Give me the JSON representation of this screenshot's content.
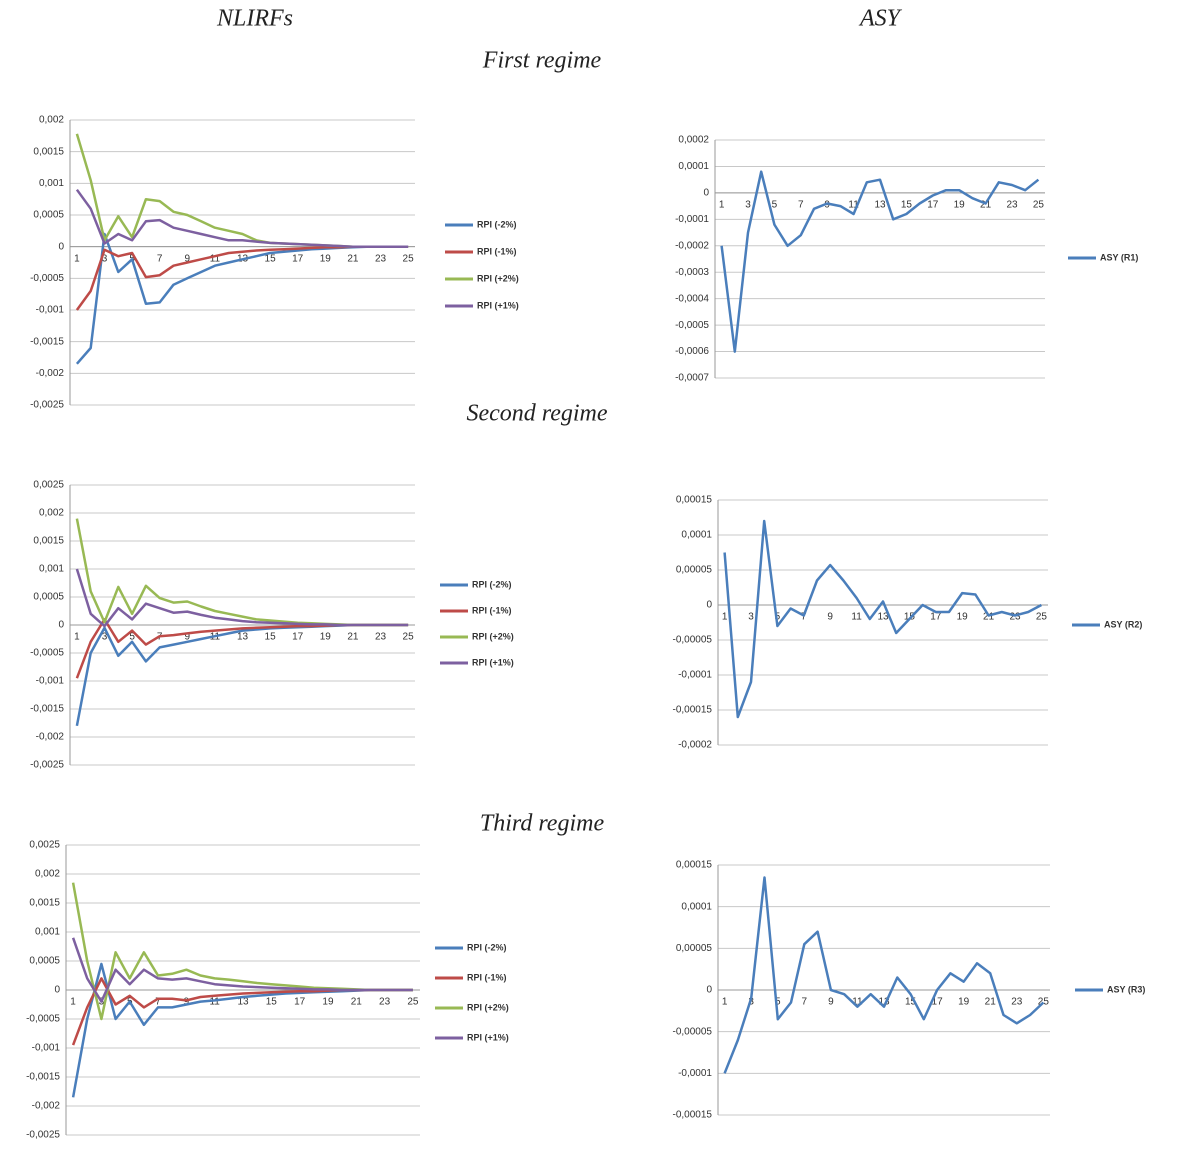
{
  "column_titles": [
    "NLIRFs",
    "ASY"
  ],
  "regime_titles": [
    "First regime",
    "Second regime",
    "Third regime"
  ],
  "chart_data": [
    {
      "type": "line",
      "categories": [
        "1",
        null,
        "3",
        null,
        "5",
        null,
        "7",
        null,
        "9",
        null,
        "11",
        null,
        "13",
        null,
        "15",
        null,
        "17",
        null,
        "19",
        null,
        "21",
        null,
        "23",
        null,
        "25"
      ],
      "ylim": [
        -0.0025,
        0.002
      ],
      "yticks": [
        {
          "value": -0.0025,
          "label": "-0,0025"
        },
        {
          "value": -0.002,
          "label": "-0,002"
        },
        {
          "value": -0.0015,
          "label": "-0,0015"
        },
        {
          "value": -0.001,
          "label": "-0,001"
        },
        {
          "value": -0.0005,
          "label": "-0,0005"
        },
        0,
        {
          "value": 0.0005,
          "label": "0,0005"
        },
        {
          "value": 0.001,
          "label": "0,001"
        },
        {
          "value": 0.0015,
          "label": "0,0015"
        },
        {
          "value": 0.002,
          "label": "0,002"
        }
      ],
      "grid": true,
      "series": [
        {
          "name": "RPI (-2%)",
          "color": "#4a7ebb",
          "values": [
            -0.00185,
            -0.0016,
            0.0002,
            -0.0004,
            -0.0002,
            -0.0009,
            -0.00088,
            -0.0006,
            -0.0005,
            -0.0004,
            -0.0003,
            -0.00025,
            -0.0002,
            -0.00015,
            -0.0001,
            -8e-05,
            -6e-05,
            -4e-05,
            -3e-05,
            -2e-05,
            -1e-05,
            0,
            0,
            0,
            0
          ]
        },
        {
          "name": "RPI (-1%)",
          "color": "#be4b48",
          "values": [
            -0.001,
            -0.0007,
            -5e-05,
            -0.00015,
            -0.0001,
            -0.00048,
            -0.00045,
            -0.0003,
            -0.00025,
            -0.0002,
            -0.00015,
            -0.0001,
            -8e-05,
            -6e-05,
            -5e-05,
            -4e-05,
            -3e-05,
            -2e-05,
            -1e-05,
            -1e-05,
            0,
            0,
            0,
            0,
            0
          ]
        },
        {
          "name": "RPI (+2%)",
          "color": "#98b954",
          "values": [
            0.00178,
            0.00105,
            0.0001,
            0.00048,
            0.00015,
            0.00075,
            0.00072,
            0.00055,
            0.0005,
            0.0004,
            0.0003,
            0.00025,
            0.0002,
            0.0001,
            6e-05,
            5e-05,
            4e-05,
            3e-05,
            2e-05,
            1e-05,
            0,
            0,
            0,
            0,
            0
          ]
        },
        {
          "name": "RPI (+1%)",
          "color": "#7d60a0",
          "values": [
            0.0009,
            0.0006,
            5e-05,
            0.0002,
            0.0001,
            0.0004,
            0.00042,
            0.0003,
            0.00025,
            0.0002,
            0.00015,
            0.0001,
            0.0001,
            8e-05,
            6e-05,
            5e-05,
            4e-05,
            3e-05,
            2e-05,
            1e-05,
            0,
            0,
            0,
            0,
            0
          ]
        }
      ]
    },
    {
      "type": "line",
      "categories": [
        "1",
        null,
        "3",
        null,
        "5",
        null,
        "7",
        null,
        "9",
        null,
        "11",
        null,
        "13",
        null,
        "15",
        null,
        "17",
        null,
        "19",
        null,
        "21",
        null,
        "23",
        null,
        "25"
      ],
      "ylim": [
        -0.0007,
        0.0002
      ],
      "yticks": [
        {
          "value": -0.0007,
          "label": "-0,0007"
        },
        {
          "value": -0.0006,
          "label": "-0,0006"
        },
        {
          "value": -0.0005,
          "label": "-0,0005"
        },
        {
          "value": -0.0004,
          "label": "-0,0004"
        },
        {
          "value": -0.0003,
          "label": "-0,0003"
        },
        {
          "value": -0.0002,
          "label": "-0,0002"
        },
        {
          "value": -0.0001,
          "label": "-0,0001"
        },
        0,
        {
          "value": 0.0001,
          "label": "0,0001"
        },
        {
          "value": 0.0002,
          "label": "0,0002"
        }
      ],
      "grid": true,
      "series": [
        {
          "name": "ASY (R1)",
          "color": "#4a7ebb",
          "values": [
            -0.0002,
            -0.0006,
            -0.00015,
            8e-05,
            -0.00012,
            -0.0002,
            -0.00016,
            -6e-05,
            -4e-05,
            -5e-05,
            -8e-05,
            4e-05,
            5e-05,
            -0.0001,
            -8e-05,
            -4e-05,
            -1e-05,
            1e-05,
            1e-05,
            -2e-05,
            -4e-05,
            4e-05,
            3e-05,
            1e-05,
            5e-05
          ]
        }
      ]
    },
    {
      "type": "line",
      "categories": [
        "1",
        null,
        "3",
        null,
        "5",
        null,
        "7",
        null,
        "9",
        null,
        "11",
        null,
        "13",
        null,
        "15",
        null,
        "17",
        null,
        "19",
        null,
        "21",
        null,
        "23",
        null,
        "25"
      ],
      "ylim": [
        -0.0025,
        0.0025
      ],
      "yticks": [
        {
          "value": -0.0025,
          "label": "-0,0025"
        },
        {
          "value": -0.002,
          "label": "-0,002"
        },
        {
          "value": -0.0015,
          "label": "-0,0015"
        },
        {
          "value": -0.001,
          "label": "-0,001"
        },
        {
          "value": -0.0005,
          "label": "-0,0005"
        },
        0,
        {
          "value": 0.0005,
          "label": "0,0005"
        },
        {
          "value": 0.001,
          "label": "0,001"
        },
        {
          "value": 0.0015,
          "label": "0,0015"
        },
        {
          "value": 0.002,
          "label": "0,002"
        },
        {
          "value": 0.0025,
          "label": "0,0025"
        }
      ],
      "grid": true,
      "series": [
        {
          "name": "RPI (-2%)",
          "color": "#4a7ebb",
          "values": [
            -0.0018,
            -0.0005,
            -5e-05,
            -0.00055,
            -0.0003,
            -0.00065,
            -0.0004,
            -0.00035,
            -0.0003,
            -0.00025,
            -0.0002,
            -0.00015,
            -0.0001,
            -8e-05,
            -6e-05,
            -5e-05,
            -4e-05,
            -3e-05,
            -2e-05,
            -1e-05,
            0,
            0,
            0,
            0,
            0
          ]
        },
        {
          "name": "RPI (-1%)",
          "color": "#be4b48",
          "values": [
            -0.00095,
            -0.0003,
            0.0001,
            -0.0003,
            -0.0001,
            -0.00035,
            -0.0002,
            -0.00018,
            -0.00015,
            -0.00012,
            -0.0001,
            -8e-05,
            -6e-05,
            -5e-05,
            -4e-05,
            -3e-05,
            -2e-05,
            -2e-05,
            -1e-05,
            0,
            0,
            0,
            0,
            0,
            0
          ]
        },
        {
          "name": "RPI (+2%)",
          "color": "#98b954",
          "values": [
            0.0019,
            0.0006,
            5e-05,
            0.00068,
            0.0002,
            0.0007,
            0.00048,
            0.0004,
            0.00042,
            0.00033,
            0.00025,
            0.0002,
            0.00015,
            0.0001,
            8e-05,
            6e-05,
            4e-05,
            3e-05,
            2e-05,
            1e-05,
            0,
            0,
            0,
            0,
            0
          ]
        },
        {
          "name": "RPI (+1%)",
          "color": "#7d60a0",
          "values": [
            0.001,
            0.0002,
            -2e-05,
            0.0003,
            0.0001,
            0.00038,
            0.0003,
            0.00022,
            0.00024,
            0.00018,
            0.00013,
            0.0001,
            7e-05,
            5e-05,
            4e-05,
            3e-05,
            2e-05,
            1e-05,
            1e-05,
            0,
            0,
            0,
            0,
            0,
            0
          ]
        }
      ]
    },
    {
      "type": "line",
      "categories": [
        "1",
        null,
        "3",
        null,
        "5",
        null,
        "7",
        null,
        "9",
        null,
        "11",
        null,
        "13",
        null,
        "15",
        null,
        "17",
        null,
        "19",
        null,
        "21",
        null,
        "23",
        null,
        "25"
      ],
      "ylim": [
        -0.0002,
        0.00015
      ],
      "yticks": [
        {
          "value": -0.0002,
          "label": "-0,0002"
        },
        {
          "value": -0.00015,
          "label": "-0,00015"
        },
        {
          "value": -0.0001,
          "label": "-0,0001"
        },
        {
          "value": -5e-05,
          "label": "-0,00005"
        },
        0,
        {
          "value": 5e-05,
          "label": "0,00005"
        },
        {
          "value": 0.0001,
          "label": "0,0001"
        },
        {
          "value": 0.00015,
          "label": "0,00015"
        }
      ],
      "grid": true,
      "series": [
        {
          "name": "ASY (R2)",
          "color": "#4a7ebb",
          "values": [
            7.5e-05,
            -0.00016,
            -0.00011,
            0.00012,
            -3e-05,
            -5e-06,
            -1.5e-05,
            3.5e-05,
            5.7e-05,
            3.5e-05,
            1e-05,
            -2e-05,
            5e-06,
            -4e-05,
            -2e-05,
            0,
            -1e-05,
            -1e-05,
            1.7e-05,
            1.5e-05,
            -1.5e-05,
            -1e-05,
            -1.5e-05,
            -1e-05,
            0
          ]
        }
      ]
    },
    {
      "type": "line",
      "categories": [
        "1",
        null,
        "3",
        null,
        "5",
        null,
        "7",
        null,
        "9",
        null,
        "11",
        null,
        "13",
        null,
        "15",
        null,
        "17",
        null,
        "19",
        null,
        "21",
        null,
        "23",
        null,
        "25"
      ],
      "ylim": [
        -0.0025,
        0.0025
      ],
      "yticks": [
        {
          "value": -0.0025,
          "label": "-0,0025"
        },
        {
          "value": -0.002,
          "label": "-0,002"
        },
        {
          "value": -0.0015,
          "label": "-0,0015"
        },
        {
          "value": -0.001,
          "label": "-0,001"
        },
        {
          "value": -0.0005,
          "label": "-0,0005"
        },
        0,
        {
          "value": 0.0005,
          "label": "0,0005"
        },
        {
          "value": 0.001,
          "label": "0,001"
        },
        {
          "value": 0.0015,
          "label": "0,0015"
        },
        {
          "value": 0.002,
          "label": "0,002"
        },
        {
          "value": 0.0025,
          "label": "0,0025"
        }
      ],
      "grid": true,
      "series": [
        {
          "name": "RPI (-2%)",
          "color": "#4a7ebb",
          "values": [
            -0.00185,
            -0.0005,
            0.00045,
            -0.0005,
            -0.0002,
            -0.0006,
            -0.0003,
            -0.0003,
            -0.00025,
            -0.0002,
            -0.00018,
            -0.00015,
            -0.00012,
            -0.0001,
            -8e-05,
            -6e-05,
            -5e-05,
            -4e-05,
            -3e-05,
            -2e-05,
            -1e-05,
            0,
            0,
            0,
            0
          ]
        },
        {
          "name": "RPI (-1%)",
          "color": "#be4b48",
          "values": [
            -0.00095,
            -0.0003,
            0.0002,
            -0.00025,
            -0.0001,
            -0.0003,
            -0.00015,
            -0.00015,
            -0.00018,
            -0.00012,
            -0.0001,
            -8e-05,
            -6e-05,
            -5e-05,
            -4e-05,
            -3e-05,
            -2e-05,
            -2e-05,
            -1e-05,
            0,
            0,
            0,
            0,
            0,
            0
          ]
        },
        {
          "name": "RPI (+2%)",
          "color": "#98b954",
          "values": [
            0.00185,
            0.0005,
            -0.0005,
            0.00065,
            0.0002,
            0.00065,
            0.00025,
            0.00028,
            0.00035,
            0.00025,
            0.0002,
            0.00018,
            0.00015,
            0.00012,
            0.0001,
            8e-05,
            6e-05,
            4e-05,
            3e-05,
            2e-05,
            1e-05,
            0,
            0,
            0,
            0
          ]
        },
        {
          "name": "RPI (+1%)",
          "color": "#7d60a0",
          "values": [
            0.0009,
            0.0002,
            -0.0002,
            0.00035,
            0.0001,
            0.00035,
            0.0002,
            0.00018,
            0.0002,
            0.00015,
            0.0001,
            8e-05,
            6e-05,
            5e-05,
            4e-05,
            3e-05,
            2e-05,
            1e-05,
            1e-05,
            0,
            0,
            0,
            0,
            0,
            0
          ]
        }
      ]
    },
    {
      "type": "line",
      "categories": [
        "1",
        null,
        "3",
        null,
        "5",
        null,
        "7",
        null,
        "9",
        null,
        "11",
        null,
        "13",
        null,
        "15",
        null,
        "17",
        null,
        "19",
        null,
        "21",
        null,
        "23",
        null,
        "25"
      ],
      "ylim": [
        -0.00015,
        0.00015
      ],
      "yticks": [
        {
          "value": -0.00015,
          "label": "-0,00015"
        },
        {
          "value": -0.0001,
          "label": "-0,0001"
        },
        {
          "value": -5e-05,
          "label": "-0,00005"
        },
        0,
        {
          "value": 5e-05,
          "label": "0,00005"
        },
        {
          "value": 0.0001,
          "label": "0,0001"
        },
        {
          "value": 0.00015,
          "label": "0,00015"
        }
      ],
      "grid": true,
      "series": [
        {
          "name": "ASY (R3)",
          "color": "#4a7ebb",
          "values": [
            -0.0001,
            -6e-05,
            -1e-05,
            0.000135,
            -3.5e-05,
            -1.5e-05,
            5.5e-05,
            7e-05,
            0,
            -5e-06,
            -2e-05,
            -5e-06,
            -2e-05,
            1.5e-05,
            -5e-06,
            -3.5e-05,
            0,
            2e-05,
            1e-05,
            3.2e-05,
            2e-05,
            -3e-05,
            -4e-05,
            -3e-05,
            -1.5e-05
          ]
        }
      ]
    }
  ]
}
